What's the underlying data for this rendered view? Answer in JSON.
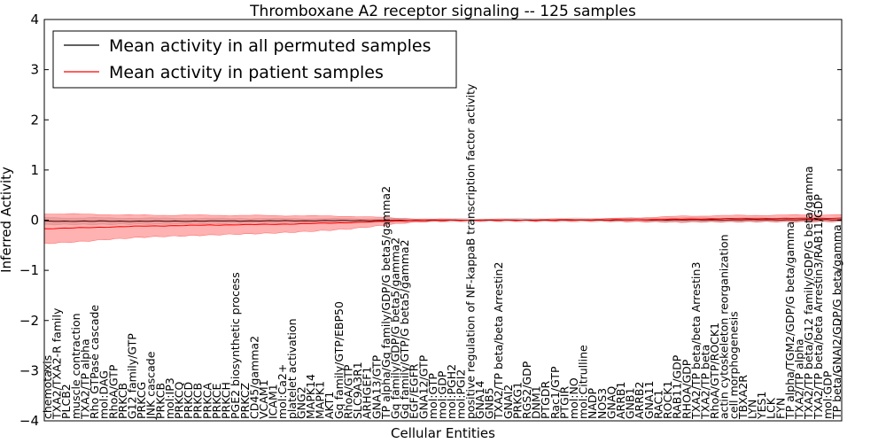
{
  "chart_data": {
    "type": "line",
    "title": "Thromboxane A2 receptor signaling -- 125 samples",
    "xlabel": "Cellular Entities",
    "ylabel": "Inferred Activity",
    "ylim": [
      -4,
      4
    ],
    "yticks": [
      "4",
      "3",
      "2",
      "1",
      "0",
      "−1",
      "−2",
      "−3",
      "−4"
    ],
    "grid": false,
    "legend": {
      "placement": "top-left",
      "entries": [
        {
          "name": "Mean activity in all permuted samples",
          "color": "#000000"
        },
        {
          "name": "Mean activity in patient samples",
          "color": "#ff0000"
        }
      ]
    },
    "n_points": 160,
    "series": [
      {
        "name": "Mean activity in all permuted samples",
        "color": "#000000",
        "band_color": "#aaaaaa",
        "points": [
          [
            0,
            -0.02
          ],
          [
            0.15,
            -0.02
          ],
          [
            0.35,
            -0.01
          ],
          [
            0.55,
            0.0
          ],
          [
            0.78,
            0.005
          ],
          [
            1.0,
            0.01
          ]
        ],
        "band_points": [
          [
            0,
            0.07
          ],
          [
            0.15,
            0.06
          ],
          [
            0.35,
            0.04
          ],
          [
            0.55,
            0.03
          ],
          [
            0.78,
            0.04
          ],
          [
            1.0,
            0.03
          ]
        ]
      },
      {
        "name": "Mean activity in patient samples",
        "color": "#ff0000",
        "band_color": "#ff0000",
        "points": [
          [
            0,
            -0.17
          ],
          [
            0.05,
            -0.15
          ],
          [
            0.12,
            -0.12
          ],
          [
            0.2,
            -0.1
          ],
          [
            0.3,
            -0.08
          ],
          [
            0.38,
            -0.05
          ],
          [
            0.45,
            -0.01
          ],
          [
            0.5,
            0.0
          ],
          [
            0.62,
            0.0
          ],
          [
            0.75,
            0.01
          ],
          [
            0.85,
            0.03
          ],
          [
            1.0,
            0.04
          ]
        ],
        "band_points": [
          [
            0,
            0.3
          ],
          [
            0.05,
            0.27
          ],
          [
            0.12,
            0.22
          ],
          [
            0.2,
            0.2
          ],
          [
            0.3,
            0.17
          ],
          [
            0.38,
            0.13
          ],
          [
            0.44,
            0.06
          ],
          [
            0.48,
            0.02
          ],
          [
            0.55,
            0.01
          ],
          [
            0.7,
            0.02
          ],
          [
            0.8,
            0.06
          ],
          [
            1.0,
            0.07
          ]
        ]
      }
    ],
    "entity_labels": [
      {
        "pos": 0.0,
        "text": "chemotaxis"
      },
      {
        "pos": 0.013,
        "text": "TXA2/TXA2-R family"
      },
      {
        "pos": 0.026,
        "text": "PLCB2"
      },
      {
        "pos": 0.039,
        "text": "muscle contraction"
      },
      {
        "pos": 0.052,
        "text": "TXA2/TP alpha"
      },
      {
        "pos": 0.065,
        "text": "Rho GTPase cascade"
      },
      {
        "pos": 0.078,
        "text": "mol:DAG"
      },
      {
        "pos": 0.091,
        "text": "RhoA/GTP"
      },
      {
        "pos": 0.104,
        "text": "PRKCB"
      },
      {
        "pos": 0.117,
        "text": "G12 family/GTP"
      },
      {
        "pos": 0.13,
        "text": "PRKCG"
      },
      {
        "pos": 0.143,
        "text": "JNK cascade"
      },
      {
        "pos": 0.156,
        "text": "PRKCB"
      },
      {
        "pos": 0.169,
        "text": "mol:IP3"
      },
      {
        "pos": 0.182,
        "text": "PRKCQ"
      },
      {
        "pos": 0.195,
        "text": "PRKCD"
      },
      {
        "pos": 0.208,
        "text": "PRKCB"
      },
      {
        "pos": 0.221,
        "text": "PRKCA"
      },
      {
        "pos": 0.234,
        "text": "PRKCE"
      },
      {
        "pos": 0.247,
        "text": "PRKCH"
      },
      {
        "pos": 0.26,
        "text": "PGE2 biosynthetic process"
      },
      {
        "pos": 0.273,
        "text": "PRKCZ"
      },
      {
        "pos": 0.286,
        "text": "CD45/gamma2"
      },
      {
        "pos": 0.299,
        "text": "VCAM1"
      },
      {
        "pos": 0.312,
        "text": "ICAM1"
      },
      {
        "pos": 0.325,
        "text": "mol:Ca2+"
      },
      {
        "pos": 0.338,
        "text": "platelet activation"
      },
      {
        "pos": 0.351,
        "text": "GNG2"
      },
      {
        "pos": 0.364,
        "text": "MAPK14"
      },
      {
        "pos": 0.377,
        "text": "MAPK1"
      },
      {
        "pos": 0.39,
        "text": "AKT1"
      },
      {
        "pos": 0.403,
        "text": "Gq family/GTP/EBP50"
      },
      {
        "pos": 0.416,
        "text": "RhoA/GTP"
      },
      {
        "pos": 0.429,
        "text": "SLC9A3R1"
      },
      {
        "pos": 0.442,
        "text": "ARHGEF1"
      },
      {
        "pos": 0.455,
        "text": "GNA13/GTP"
      },
      {
        "pos": 0.468,
        "text": "TP alpha/Gq family/GDP/G beta5/gamma2"
      },
      {
        "pos": 0.481,
        "text": "Gq family/GDP/G beta5/gamma2"
      },
      {
        "pos": 0.494,
        "text": "Gq family/GTP/G beta5/gamma2"
      },
      {
        "pos": 0.507,
        "text": "EGF/EGFR"
      },
      {
        "pos": 0.52,
        "text": "GNA12/GTP"
      },
      {
        "pos": 0.533,
        "text": "mol:GTP"
      },
      {
        "pos": 0.546,
        "text": "mol:GDP"
      },
      {
        "pos": 0.559,
        "text": "mol:PGH2"
      },
      {
        "pos": 0.572,
        "text": "mol:PGI2"
      },
      {
        "pos": 0.585,
        "text": "positive regulation of NF-kappaB transcription factor activity"
      },
      {
        "pos": 0.598,
        "text": "GNA14"
      },
      {
        "pos": 0.611,
        "text": "GNB5"
      },
      {
        "pos": 0.624,
        "text": "TXA2/TP beta/beta Arrestin2"
      },
      {
        "pos": 0.637,
        "text": "GNAI2"
      },
      {
        "pos": 0.65,
        "text": "PRKG1"
      },
      {
        "pos": 0.663,
        "text": "RGS2/GDP"
      },
      {
        "pos": 0.676,
        "text": "DNM1"
      },
      {
        "pos": 0.689,
        "text": "PTGDR"
      },
      {
        "pos": 0.702,
        "text": "Rac1/GTP"
      },
      {
        "pos": 0.715,
        "text": "PTGIR"
      },
      {
        "pos": 0.728,
        "text": "mol:NO"
      },
      {
        "pos": 0.741,
        "text": "mol:Citrulline"
      },
      {
        "pos": 0.754,
        "text": "NADP"
      },
      {
        "pos": 0.767,
        "text": "NOS3"
      },
      {
        "pos": 0.78,
        "text": "GNAQ"
      },
      {
        "pos": 0.793,
        "text": "ARRB1"
      },
      {
        "pos": 0.806,
        "text": "GNB1"
      },
      {
        "pos": 0.819,
        "text": "ARRB2"
      },
      {
        "pos": 0.832,
        "text": "GNA11"
      },
      {
        "pos": 0.845,
        "text": "RAC1"
      },
      {
        "pos": 0.858,
        "text": "ROCK1"
      },
      {
        "pos": 0.871,
        "text": "RAB11/GDP"
      },
      {
        "pos": 0.884,
        "text": "RHOA/GDP"
      },
      {
        "pos": 0.897,
        "text": "TXA2/TP beta/beta Arrestin3"
      },
      {
        "pos": 0.91,
        "text": "TXA2/TP beta"
      },
      {
        "pos": 0.923,
        "text": "RhoA/GTP/ROCK1"
      },
      {
        "pos": 0.936,
        "text": "actin cytoskeleton reorganization"
      },
      {
        "pos": 0.949,
        "text": "cell morphogenesis"
      },
      {
        "pos": 0.962,
        "text": "TBXA2R"
      },
      {
        "pos": 0.975,
        "text": "LYN"
      },
      {
        "pos": 0.988,
        "text": "YES1"
      },
      {
        "pos": 1.001,
        "text": "LCK"
      },
      {
        "pos": 1.014,
        "text": "FYN"
      },
      {
        "pos": 1.027,
        "text": "TP alpha/TGM2/GDP/G beta/gamma"
      },
      {
        "pos": 1.04,
        "text": "TXA2/TP alpha"
      },
      {
        "pos": 1.053,
        "text": "TXA2/TP beta/G12 family/GDP/G beta/gamma"
      },
      {
        "pos": 1.066,
        "text": "TXA2/TP beta/beta Arrestin3/RAB11/GDP"
      },
      {
        "pos": 1.079,
        "text": "mol:GDP"
      },
      {
        "pos": 1.092,
        "text": "TP beta/GNAI2/GDP/G beta/gamma"
      }
    ]
  }
}
